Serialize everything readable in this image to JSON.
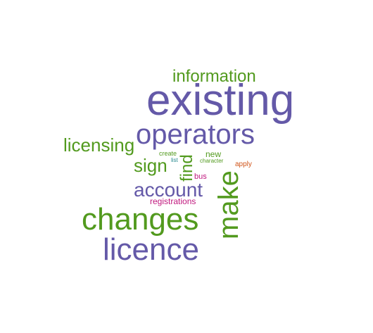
{
  "colors": {
    "purple": "#6459a8",
    "green": "#529a1e",
    "magenta": "#c0177d",
    "orange": "#d0551a",
    "teal": "#27898f",
    "background": "#ffffff"
  },
  "words": {
    "existing": "existing",
    "operators": "operators",
    "information": "information",
    "licensing": "licensing",
    "sign": "sign",
    "account": "account",
    "changes": "changes",
    "licence": "licence",
    "make": "make",
    "find": "find",
    "create": "create",
    "list": "list",
    "new": "new",
    "character": "character",
    "apply": "apply",
    "bus": "bus",
    "registrations": "registrations"
  }
}
